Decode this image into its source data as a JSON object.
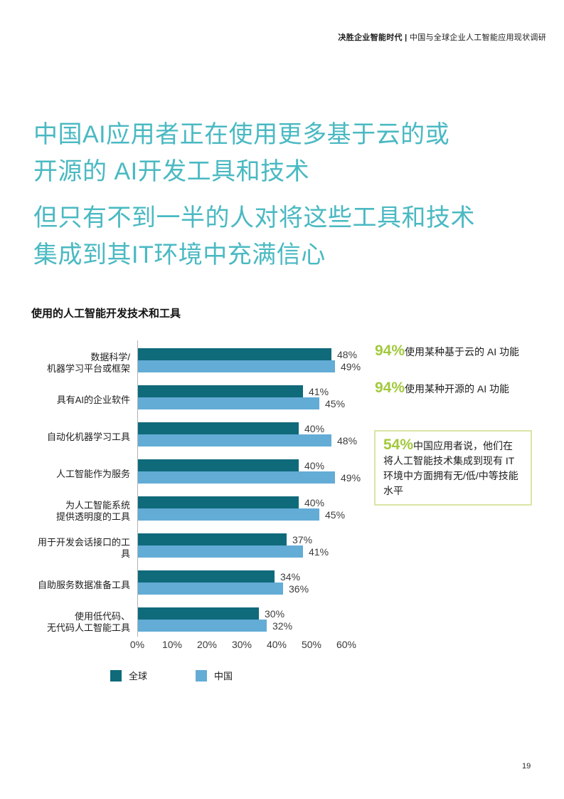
{
  "header": {
    "title_bold": "决胜企业智能时代",
    "separator": " | ",
    "title_rest": "中国与全球企业人工智能应用现状调研"
  },
  "headings": {
    "h1_line1": "中国AI应用者正在使用更多基于云的或",
    "h1_line2": "开源的 AI开发工具和技术",
    "h2_line1": "但只有不到一半的人对将这些工具和技术",
    "h2_line2": "集成到其IT环境中充满信心"
  },
  "chart_data": {
    "type": "bar",
    "orientation": "horizontal",
    "title": "使用的人工智能开发技术和工具",
    "categories": [
      "数据科学/\n机器学习平台或框架",
      "具有AI的企业软件",
      "自动化机器学习工具",
      "人工智能作为服务",
      "为人工智能系统\n提供透明度的工具",
      "用于开发会话接口的工具",
      "自助服务数据准备工具",
      "使用低代码、\n无代码人工智能工具"
    ],
    "series": [
      {
        "name": "全球",
        "color": "#0f6a7a",
        "values": [
          48,
          41,
          40,
          40,
          40,
          37,
          34,
          30
        ]
      },
      {
        "name": "中国",
        "color": "#63acd6",
        "values": [
          49,
          45,
          48,
          49,
          45,
          41,
          36,
          32
        ]
      }
    ],
    "value_suffix": "%",
    "x_ticks": [
      "0%",
      "10%",
      "20%",
      "30%",
      "40%",
      "50%",
      "60%"
    ],
    "xlim": [
      0,
      60
    ],
    "grid": false,
    "legend_position": "bottom"
  },
  "annotations": {
    "stat1": {
      "value": "94%",
      "text": "使用某种基于云的 AI 功能"
    },
    "stat2": {
      "value": "94%",
      "text": "使用某种开源的 AI 功能"
    },
    "skill_box": {
      "value": "54%",
      "text": "中国应用者说，他们在将人工智能技术集成到现有 IT 环境中方面拥有无/低/中等技能水平"
    }
  },
  "colors": {
    "heading_teal": "#4ab9c2",
    "series_global": "#0f6a7a",
    "series_china": "#63acd6",
    "stat_green": "#a2c93d",
    "box_border_green": "#d9e5a4"
  },
  "page_number": "19"
}
